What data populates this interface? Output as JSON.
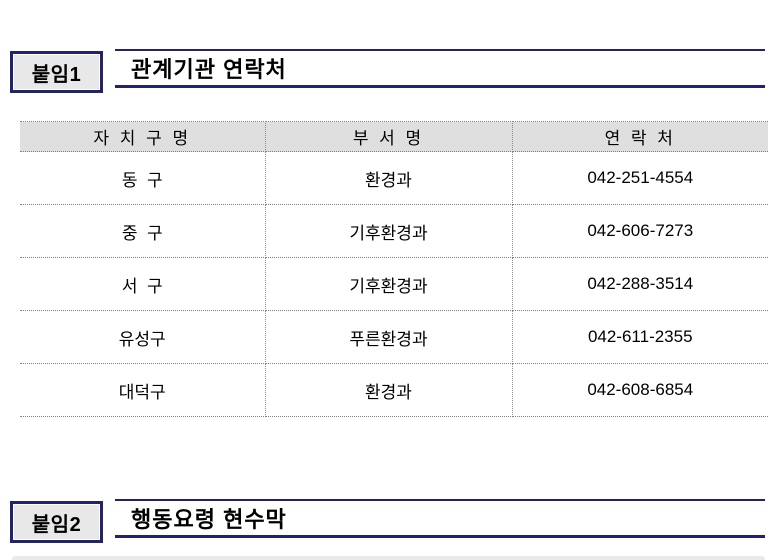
{
  "document": {
    "background": "#ffffff",
    "accent_color": "#23236B",
    "badge_bg": "#e8e8e8",
    "table_header_bg": "#dfdfdf",
    "dotted_border_color": "#808080"
  },
  "section1": {
    "badge": "붙임1",
    "title": "관계기관 연락처"
  },
  "section2": {
    "badge": "붙임2",
    "title": "행동요령 현수막"
  },
  "table": {
    "headers": [
      "자 치 구 명",
      "부 서 명",
      "연 락 처"
    ],
    "rows": [
      {
        "district": "동  구",
        "department": "환경과",
        "phone": "042-251-4554"
      },
      {
        "district": "중  구",
        "department": "기후환경과",
        "phone": "042-606-7273"
      },
      {
        "district": "서  구",
        "department": "기후환경과",
        "phone": "042-288-3514"
      },
      {
        "district": "유성구",
        "department": "푸른환경과",
        "phone": "042-611-2355"
      },
      {
        "district": "대덕구",
        "department": "환경과",
        "phone": "042-608-6854"
      }
    ]
  }
}
